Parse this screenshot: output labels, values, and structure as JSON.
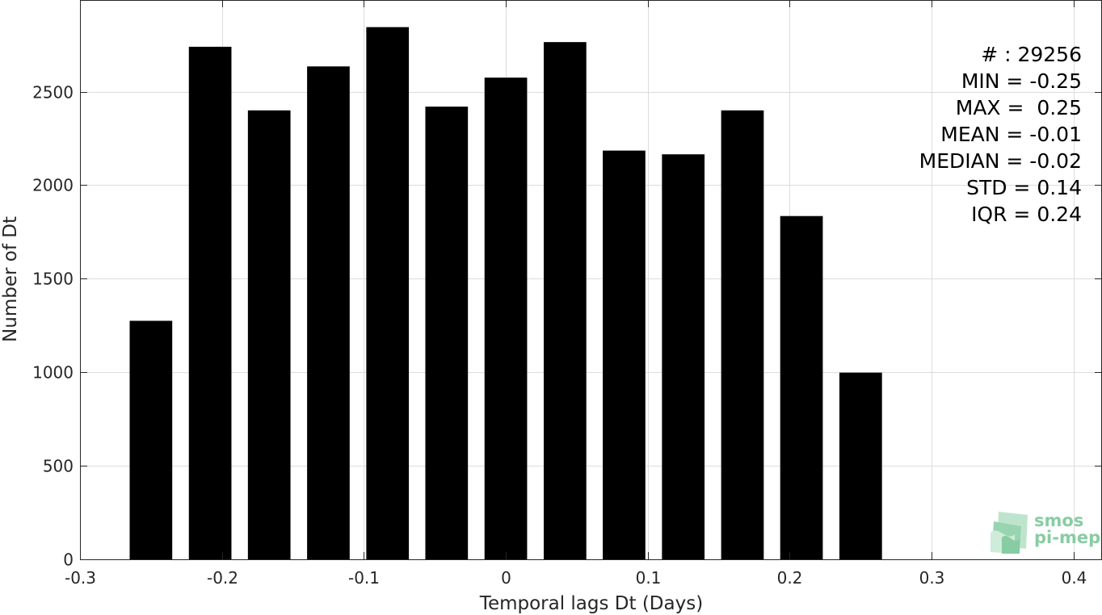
{
  "chart_data": {
    "type": "bar",
    "title": "",
    "xlabel": "Temporal lags Dt (Days)",
    "ylabel": "Number of Dt",
    "x": [
      -0.25,
      -0.2083,
      -0.1667,
      -0.125,
      -0.0833,
      -0.0417,
      0,
      0.0417,
      0.0833,
      0.125,
      0.1667,
      0.2083,
      0.25
    ],
    "values": [
      1275,
      2740,
      2400,
      2635,
      2845,
      2420,
      2575,
      2765,
      2185,
      2165,
      2400,
      1835,
      998
    ],
    "bar_width": 0.03,
    "xlim": [
      -0.3,
      0.42
    ],
    "ylim": [
      0,
      2990
    ],
    "xticks": [
      -0.3,
      -0.2,
      -0.1,
      0,
      0.1,
      0.2,
      0.3,
      0.4
    ],
    "xtick_labels": [
      "-0.3",
      "-0.2",
      "-0.1",
      "0",
      "0.1",
      "0.2",
      "0.3",
      "0.4"
    ],
    "yticks": [
      0,
      500,
      1000,
      1500,
      2000,
      2500
    ],
    "ytick_labels": [
      "0",
      "500",
      "1000",
      "1500",
      "2000",
      "2500"
    ],
    "grid": true,
    "bar_color": "#000000",
    "grid_color": "#dcdcdc"
  },
  "stats": [
    "# : 29256",
    "MIN = -0.25",
    "MAX =  0.25",
    "MEAN = -0.01",
    "MEDIAN = -0.02",
    "STD = 0.14",
    "IQR = 0.24"
  ],
  "logo": {
    "line1": "smos",
    "line2": "pi-mep",
    "color": "#6fbf8e"
  }
}
